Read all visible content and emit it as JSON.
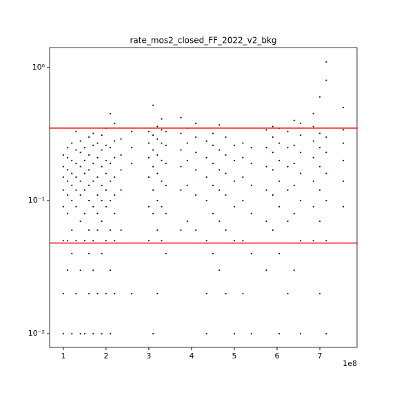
{
  "chart_data": {
    "type": "scatter",
    "title": "rate_mos2_closed_FF_2022_v2_bkg",
    "x_offset_label": "1e8",
    "xlim": [
      68000000,
      787000000
    ],
    "xticks": [
      {
        "value": 100000000,
        "label": "1"
      },
      {
        "value": 200000000,
        "label": "2"
      },
      {
        "value": 300000000,
        "label": "3"
      },
      {
        "value": 400000000,
        "label": "4"
      },
      {
        "value": 500000000,
        "label": "5"
      },
      {
        "value": 600000000,
        "label": "6"
      },
      {
        "value": 700000000,
        "label": "7"
      }
    ],
    "ylim": [
      0.0079,
      1.41
    ],
    "log_y": true,
    "yticks": [
      {
        "value": 0.01,
        "label": "10⁻²"
      },
      {
        "value": 0.1,
        "label": "10⁻¹"
      },
      {
        "value": 1,
        "label": "10⁰"
      }
    ],
    "color": "#0b0b55",
    "hlines": [
      0.35,
      0.048
    ],
    "hline_color": "#ff0000",
    "columns": [
      {
        "x": 100000000,
        "values": [
          0.01,
          0.02,
          0.05,
          0.09,
          0.12,
          0.15,
          0.18,
          0.22
        ]
      },
      {
        "x": 110000000,
        "values": [
          0.03,
          0.05,
          0.08,
          0.11,
          0.14,
          0.17,
          0.21,
          0.25
        ]
      },
      {
        "x": 120000000,
        "values": [
          0.01,
          0.04,
          0.06,
          0.1,
          0.13,
          0.16,
          0.2,
          0.27
        ]
      },
      {
        "x": 130000000,
        "values": [
          0.02,
          0.05,
          0.09,
          0.12,
          0.15,
          0.19,
          0.24,
          0.33
        ]
      },
      {
        "x": 140000000,
        "values": [
          0.01,
          0.03,
          0.07,
          0.11,
          0.14,
          0.18,
          0.23,
          0.28
        ]
      },
      {
        "x": 150000000,
        "values": [
          0.01,
          0.05,
          0.08,
          0.12,
          0.16,
          0.2,
          0.25
        ]
      },
      {
        "x": 160000000,
        "values": [
          0.02,
          0.04,
          0.06,
          0.1,
          0.13,
          0.17,
          0.22,
          0.3
        ]
      },
      {
        "x": 170000000,
        "values": [
          0.01,
          0.03,
          0.05,
          0.09,
          0.14,
          0.19,
          0.26,
          0.32
        ]
      },
      {
        "x": 180000000,
        "values": [
          0.02,
          0.06,
          0.08,
          0.11,
          0.15,
          0.21,
          0.27
        ]
      },
      {
        "x": 190000000,
        "values": [
          0.01,
          0.04,
          0.07,
          0.1,
          0.13,
          0.18,
          0.24,
          0.31
        ]
      },
      {
        "x": 200000000,
        "values": [
          0.02,
          0.05,
          0.09,
          0.12,
          0.16,
          0.2,
          0.26,
          0.35
        ]
      },
      {
        "x": 210000000,
        "values": [
          0.01,
          0.03,
          0.06,
          0.1,
          0.14,
          0.19,
          0.25,
          0.45
        ]
      },
      {
        "x": 220000000,
        "values": [
          0.02,
          0.05,
          0.08,
          0.11,
          0.15,
          0.21,
          0.28,
          0.38
        ]
      },
      {
        "x": 235000000,
        "values": [
          0.06,
          0.12,
          0.17,
          0.22,
          0.29
        ]
      },
      {
        "x": 260000000,
        "values": [
          0.02,
          0.19,
          0.25,
          0.33
        ]
      },
      {
        "x": 300000000,
        "values": [
          0.05,
          0.09,
          0.15,
          0.21,
          0.27,
          0.33
        ]
      },
      {
        "x": 310000000,
        "values": [
          0.01,
          0.08,
          0.12,
          0.18,
          0.24,
          0.31,
          0.52
        ]
      },
      {
        "x": 320000000,
        "values": [
          0.02,
          0.06,
          0.1,
          0.16,
          0.22,
          0.29,
          0.36
        ]
      },
      {
        "x": 330000000,
        "values": [
          0.05,
          0.09,
          0.14,
          0.2,
          0.27,
          0.34,
          0.41
        ]
      },
      {
        "x": 340000000,
        "values": [
          0.04,
          0.08,
          0.13,
          0.19,
          0.26,
          0.33
        ]
      },
      {
        "x": 375000000,
        "values": [
          0.06,
          0.12,
          0.18,
          0.24,
          0.32,
          0.42
        ]
      },
      {
        "x": 390000000,
        "values": [
          0.07,
          0.13,
          0.2,
          0.27,
          0.35
        ]
      },
      {
        "x": 410000000,
        "values": [
          0.06,
          0.11,
          0.17,
          0.23,
          0.3,
          0.38
        ]
      },
      {
        "x": 435000000,
        "values": [
          0.01,
          0.02,
          0.05,
          0.1,
          0.15,
          0.21,
          0.28
        ]
      },
      {
        "x": 450000000,
        "values": [
          0.04,
          0.08,
          0.13,
          0.19,
          0.26,
          0.32
        ]
      },
      {
        "x": 465000000,
        "values": [
          0.03,
          0.07,
          0.12,
          0.17,
          0.24,
          0.37
        ]
      },
      {
        "x": 480000000,
        "values": [
          0.02,
          0.06,
          0.11,
          0.16,
          0.22,
          0.3
        ]
      },
      {
        "x": 500000000,
        "values": [
          0.01,
          0.05,
          0.09,
          0.14,
          0.2,
          0.26
        ]
      },
      {
        "x": 520000000,
        "values": [
          0.02,
          0.05,
          0.1,
          0.15,
          0.21,
          0.27
        ]
      },
      {
        "x": 540000000,
        "values": [
          0.01,
          0.04,
          0.08,
          0.13,
          0.19,
          0.25
        ]
      },
      {
        "x": 575000000,
        "values": [
          0.03,
          0.07,
          0.12,
          0.18,
          0.25,
          0.34
        ]
      },
      {
        "x": 590000000,
        "values": [
          0.06,
          0.11,
          0.17,
          0.23,
          0.3,
          0.36
        ]
      },
      {
        "x": 605000000,
        "values": [
          0.01,
          0.04,
          0.09,
          0.14,
          0.2,
          0.27,
          0.35
        ]
      },
      {
        "x": 625000000,
        "values": [
          0.02,
          0.07,
          0.12,
          0.18,
          0.25,
          0.33
        ]
      },
      {
        "x": 640000000,
        "values": [
          0.03,
          0.08,
          0.13,
          0.19,
          0.26,
          0.4
        ]
      },
      {
        "x": 655000000,
        "values": [
          0.01,
          0.05,
          0.1,
          0.16,
          0.23,
          0.31,
          0.38
        ]
      },
      {
        "x": 685000000,
        "values": [
          0.05,
          0.09,
          0.14,
          0.21,
          0.28,
          0.36,
          0.45
        ]
      },
      {
        "x": 700000000,
        "values": [
          0.02,
          0.07,
          0.12,
          0.18,
          0.25,
          0.32,
          0.6
        ]
      },
      {
        "x": 715000000,
        "values": [
          0.01,
          0.05,
          0.1,
          0.16,
          0.23,
          0.3,
          0.8,
          1.1
        ]
      },
      {
        "x": 755000000,
        "values": [
          0.09,
          0.14,
          0.2,
          0.27,
          0.34,
          0.5
        ]
      }
    ]
  }
}
